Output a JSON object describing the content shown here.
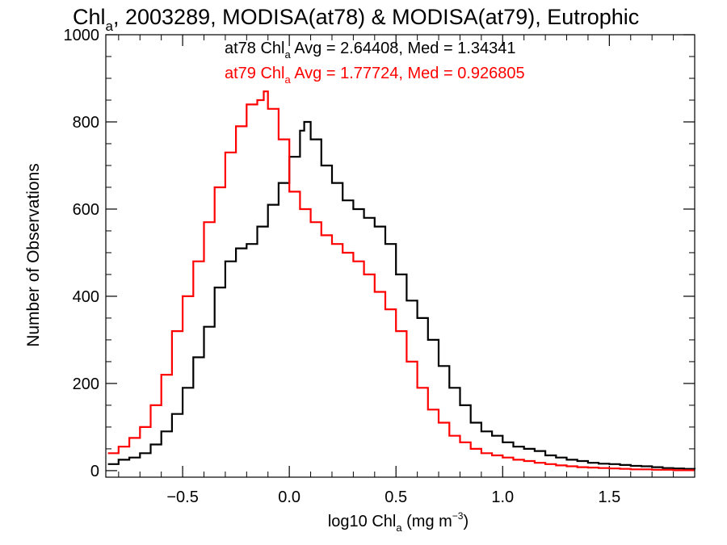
{
  "chart_data": {
    "type": "line",
    "step": true,
    "title": {
      "prefix": "Chl",
      "sub": "a",
      "rest": ", 2003289, MODISA(at78) & MODISA(at79), Eutrophic"
    },
    "xlabel": {
      "prefix": "log10 Chl",
      "sub": "a",
      "units_pre": " (mg m",
      "sup": "−3",
      "units_post": ")"
    },
    "ylabel": "Number of Observations",
    "xlim": [
      -0.86,
      1.9
    ],
    "ylim": [
      -15,
      1000
    ],
    "x_ticks": [
      -0.5,
      0.0,
      0.5,
      1.0,
      1.5
    ],
    "x_tick_labels": [
      "−0.5",
      "0.0",
      "0.5",
      "1.0",
      "1.5"
    ],
    "y_ticks": [
      0,
      200,
      400,
      600,
      800,
      1000
    ],
    "y_tick_labels": [
      "0",
      "200",
      "400",
      "600",
      "800",
      "1000"
    ],
    "annotations": [
      {
        "prefix": "at78 Chl",
        "sub": "a",
        "rest": " Avg = 2.64408, Med = 1.34341",
        "color": "#000000"
      },
      {
        "prefix": "at79 Chl",
        "sub": "a",
        "rest": " Avg = 1.77724, Med = 0.926805",
        "color": "#ff0000"
      }
    ],
    "series": [
      {
        "color": "#000000",
        "x": [
          -0.85,
          -0.8,
          -0.75,
          -0.7,
          -0.65,
          -0.6,
          -0.55,
          -0.5,
          -0.45,
          -0.4,
          -0.35,
          -0.3,
          -0.25,
          -0.2,
          -0.15,
          -0.1,
          -0.05,
          0.0,
          0.05,
          0.07,
          0.1,
          0.15,
          0.2,
          0.25,
          0.3,
          0.35,
          0.4,
          0.45,
          0.5,
          0.55,
          0.6,
          0.65,
          0.7,
          0.75,
          0.8,
          0.85,
          0.9,
          0.95,
          1.0,
          1.05,
          1.1,
          1.15,
          1.2,
          1.25,
          1.3,
          1.35,
          1.4,
          1.45,
          1.5,
          1.55,
          1.6,
          1.65,
          1.7,
          1.75,
          1.8,
          1.85,
          1.9
        ],
        "y": [
          15,
          25,
          30,
          40,
          60,
          90,
          130,
          190,
          260,
          330,
          420,
          480,
          510,
          520,
          560,
          610,
          660,
          720,
          780,
          800,
          760,
          700,
          660,
          620,
          600,
          580,
          560,
          520,
          450,
          390,
          350,
          300,
          240,
          190,
          150,
          110,
          90,
          80,
          65,
          55,
          50,
          45,
          35,
          30,
          25,
          22,
          18,
          16,
          15,
          13,
          11,
          10,
          8,
          6,
          5,
          4,
          3
        ]
      },
      {
        "color": "#ff0000",
        "x": [
          -0.85,
          -0.8,
          -0.75,
          -0.7,
          -0.65,
          -0.6,
          -0.55,
          -0.5,
          -0.45,
          -0.4,
          -0.35,
          -0.3,
          -0.25,
          -0.2,
          -0.15,
          -0.12,
          -0.1,
          -0.05,
          0.0,
          0.05,
          0.1,
          0.15,
          0.2,
          0.25,
          0.3,
          0.35,
          0.4,
          0.45,
          0.5,
          0.55,
          0.6,
          0.65,
          0.7,
          0.75,
          0.8,
          0.85,
          0.9,
          0.95,
          1.0,
          1.05,
          1.1,
          1.15,
          1.2,
          1.25,
          1.3,
          1.35,
          1.4,
          1.45,
          1.5,
          1.55,
          1.6,
          1.65,
          1.7,
          1.75,
          1.8,
          1.85,
          1.9
        ],
        "y": [
          40,
          55,
          75,
          100,
          150,
          220,
          320,
          400,
          480,
          570,
          650,
          730,
          790,
          840,
          850,
          870,
          830,
          760,
          640,
          600,
          570,
          540,
          520,
          500,
          480,
          450,
          410,
          370,
          320,
          250,
          190,
          140,
          110,
          80,
          65,
          50,
          40,
          35,
          30,
          25,
          22,
          18,
          15,
          12,
          10,
          8,
          7,
          6,
          5,
          4,
          3,
          3,
          2,
          2,
          1,
          1,
          1
        ]
      }
    ],
    "grid": false,
    "legend": "none"
  }
}
